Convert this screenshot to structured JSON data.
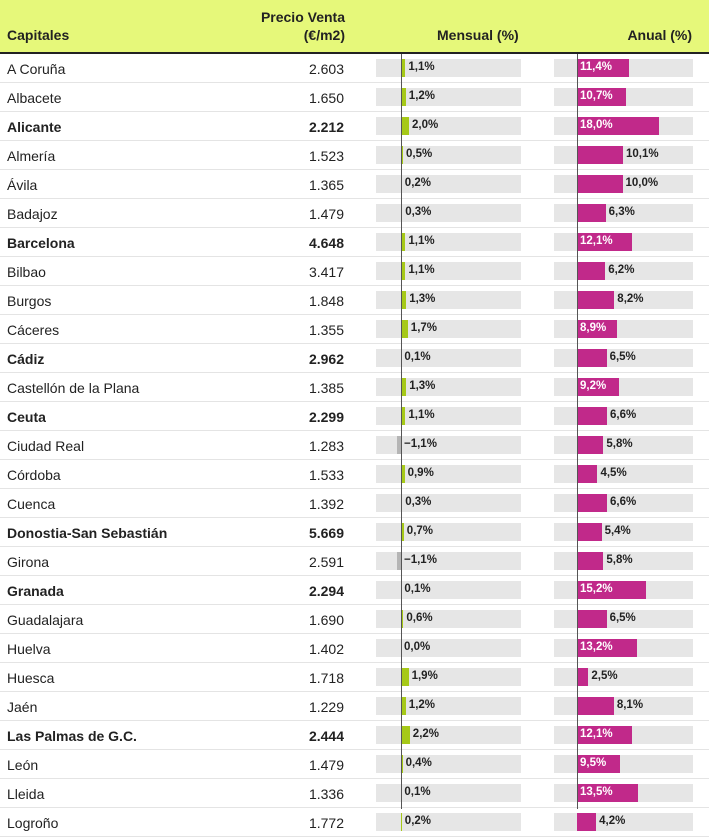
{
  "headers": {
    "capitales": "Capitales",
    "precio_line1": "Precio Venta",
    "precio_line2": "(€/m2)",
    "mensual": "Mensual (%)",
    "anual": "Anual (%)"
  },
  "colors": {
    "header_bg": "#e6f87a",
    "mensual_positive": "#a6c918",
    "mensual_negative": "#b5b5b5",
    "anual": "#c1298a",
    "track": "#e6e6e6"
  },
  "chart_data": {
    "type": "table",
    "columns": [
      "Capitales",
      "Precio Venta (€/m2)",
      "Mensual (%)",
      "Anual (%)"
    ],
    "rows": [
      {
        "capital": "A Coruña",
        "precio": "2.603",
        "mensual": 1.1,
        "mensual_label": "1,1%",
        "anual": 11.4,
        "anual_label": "11,4%",
        "bold": false
      },
      {
        "capital": "Albacete",
        "precio": "1.650",
        "mensual": 1.2,
        "mensual_label": "1,2%",
        "anual": 10.7,
        "anual_label": "10,7%",
        "bold": false
      },
      {
        "capital": "Alicante",
        "precio": "2.212",
        "mensual": 2.0,
        "mensual_label": "2,0%",
        "anual": 18.0,
        "anual_label": "18,0%",
        "bold": true
      },
      {
        "capital": "Almería",
        "precio": "1.523",
        "mensual": 0.5,
        "mensual_label": "0,5%",
        "anual": 10.1,
        "anual_label": "10,1%",
        "bold": false
      },
      {
        "capital": "Ávila",
        "precio": "1.365",
        "mensual": 0.2,
        "mensual_label": "0,2%",
        "anual": 10.0,
        "anual_label": "10,0%",
        "bold": false
      },
      {
        "capital": "Badajoz",
        "precio": "1.479",
        "mensual": 0.3,
        "mensual_label": "0,3%",
        "anual": 6.3,
        "anual_label": "6,3%",
        "bold": false
      },
      {
        "capital": "Barcelona",
        "precio": "4.648",
        "mensual": 1.1,
        "mensual_label": "1,1%",
        "anual": 12.1,
        "anual_label": "12,1%",
        "bold": true
      },
      {
        "capital": "Bilbao",
        "precio": "3.417",
        "mensual": 1.1,
        "mensual_label": "1,1%",
        "anual": 6.2,
        "anual_label": "6,2%",
        "bold": false
      },
      {
        "capital": "Burgos",
        "precio": "1.848",
        "mensual": 1.3,
        "mensual_label": "1,3%",
        "anual": 8.2,
        "anual_label": "8,2%",
        "bold": false
      },
      {
        "capital": "Cáceres",
        "precio": "1.355",
        "mensual": 1.7,
        "mensual_label": "1,7%",
        "anual": 8.9,
        "anual_label": "8,9%",
        "bold": false
      },
      {
        "capital": "Cádiz",
        "precio": "2.962",
        "mensual": 0.1,
        "mensual_label": "0,1%",
        "anual": 6.5,
        "anual_label": "6,5%",
        "bold": true
      },
      {
        "capital": "Castellón de la Plana",
        "precio": "1.385",
        "mensual": 1.3,
        "mensual_label": "1,3%",
        "anual": 9.2,
        "anual_label": "9,2%",
        "bold": false
      },
      {
        "capital": "Ceuta",
        "precio": "2.299",
        "mensual": 1.1,
        "mensual_label": "1,1%",
        "anual": 6.6,
        "anual_label": "6,6%",
        "bold": true
      },
      {
        "capital": "Ciudad Real",
        "precio": "1.283",
        "mensual": -1.1,
        "mensual_label": "−1,1%",
        "anual": 5.8,
        "anual_label": "5,8%",
        "bold": false
      },
      {
        "capital": "Córdoba",
        "precio": "1.533",
        "mensual": 0.9,
        "mensual_label": "0,9%",
        "anual": 4.5,
        "anual_label": "4,5%",
        "bold": false
      },
      {
        "capital": "Cuenca",
        "precio": "1.392",
        "mensual": 0.3,
        "mensual_label": "0,3%",
        "anual": 6.6,
        "anual_label": "6,6%",
        "bold": false
      },
      {
        "capital": "Donostia-San Sebastián",
        "precio": "5.669",
        "mensual": 0.7,
        "mensual_label": "0,7%",
        "anual": 5.4,
        "anual_label": "5,4%",
        "bold": true
      },
      {
        "capital": "Girona",
        "precio": "2.591",
        "mensual": -1.1,
        "mensual_label": "−1,1%",
        "anual": 5.8,
        "anual_label": "5,8%",
        "bold": false
      },
      {
        "capital": "Granada",
        "precio": "2.294",
        "mensual": 0.1,
        "mensual_label": "0,1%",
        "anual": 15.2,
        "anual_label": "15,2%",
        "bold": true
      },
      {
        "capital": "Guadalajara",
        "precio": "1.690",
        "mensual": 0.6,
        "mensual_label": "0,6%",
        "anual": 6.5,
        "anual_label": "6,5%",
        "bold": false
      },
      {
        "capital": "Huelva",
        "precio": "1.402",
        "mensual": 0.0,
        "mensual_label": "0,0%",
        "anual": 13.2,
        "anual_label": "13,2%",
        "bold": false
      },
      {
        "capital": "Huesca",
        "precio": "1.718",
        "mensual": 1.9,
        "mensual_label": "1,9%",
        "anual": 2.5,
        "anual_label": "2,5%",
        "bold": false
      },
      {
        "capital": "Jaén",
        "precio": "1.229",
        "mensual": 1.2,
        "mensual_label": "1,2%",
        "anual": 8.1,
        "anual_label": "8,1%",
        "bold": false
      },
      {
        "capital": "Las Palmas de G.C.",
        "precio": "2.444",
        "mensual": 2.2,
        "mensual_label": "2,2%",
        "anual": 12.1,
        "anual_label": "12,1%",
        "bold": true
      },
      {
        "capital": "León",
        "precio": "1.479",
        "mensual": 0.4,
        "mensual_label": "0,4%",
        "anual": 9.5,
        "anual_label": "9,5%",
        "bold": false
      },
      {
        "capital": "Lleida",
        "precio": "1.336",
        "mensual": 0.1,
        "mensual_label": "0,1%",
        "anual": 13.5,
        "anual_label": "13,5%",
        "bold": false
      },
      {
        "capital": "Logroño",
        "precio": "1.772",
        "mensual": 0.2,
        "mensual_label": "0,2%",
        "anual": 4.2,
        "anual_label": "4,2%",
        "bold": false
      }
    ]
  }
}
